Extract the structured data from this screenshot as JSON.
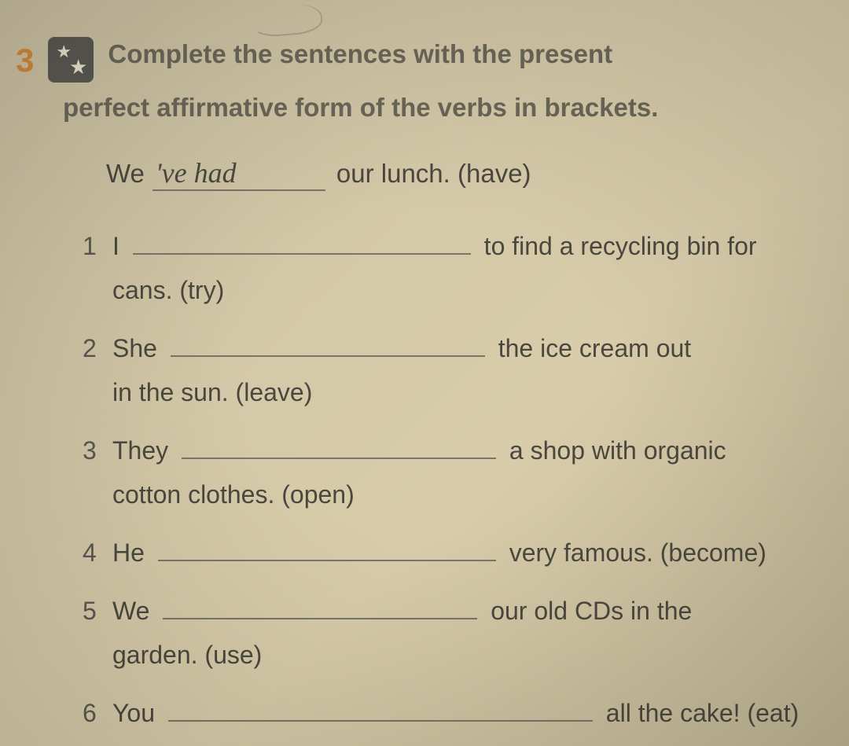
{
  "exercise": {
    "number": "3",
    "instruction_line1": "Complete the sentences with the present",
    "instruction_line2": "perfect affirmative form of the verbs in brackets."
  },
  "example": {
    "prefix": "We",
    "handwritten": "'ve had",
    "suffix": "our lunch. (have)"
  },
  "questions": [
    {
      "num": "1",
      "prefix": "I",
      "blank_class": "blank-long",
      "suffix_line1": "to find a recycling bin for",
      "suffix_line2": "cans. (try)"
    },
    {
      "num": "2",
      "prefix": "She",
      "blank_class": "blank-short",
      "suffix_line1": "the ice cream out",
      "suffix_line2": "in the sun. (leave)"
    },
    {
      "num": "3",
      "prefix": "They",
      "blank_class": "blank-short",
      "suffix_line1": "a shop with organic",
      "suffix_line2": "cotton clothes. (open)"
    },
    {
      "num": "4",
      "prefix": "He",
      "blank_class": "blank-long",
      "suffix_line1": "very famous. (become)",
      "suffix_line2": ""
    },
    {
      "num": "5",
      "prefix": "We",
      "blank_class": "blank-short",
      "suffix_line1": "our old CDs in the",
      "suffix_line2": "garden. (use)"
    },
    {
      "num": "6",
      "prefix": "You",
      "blank_class": "blank-full",
      "suffix_line1": "all the cake! (eat)",
      "suffix_line2": ""
    }
  ],
  "styling": {
    "background_color": "#d4c9a8",
    "text_color": "#4a483e",
    "instruction_color": "#6a6658",
    "number_color": "#d08838",
    "badge_bg": "#5a5852",
    "star_color": "#e8e0c8",
    "underline_color": "#7a7668",
    "body_fontsize": 32,
    "instruction_fontsize": 33,
    "handwritten_fontsize": 36
  }
}
